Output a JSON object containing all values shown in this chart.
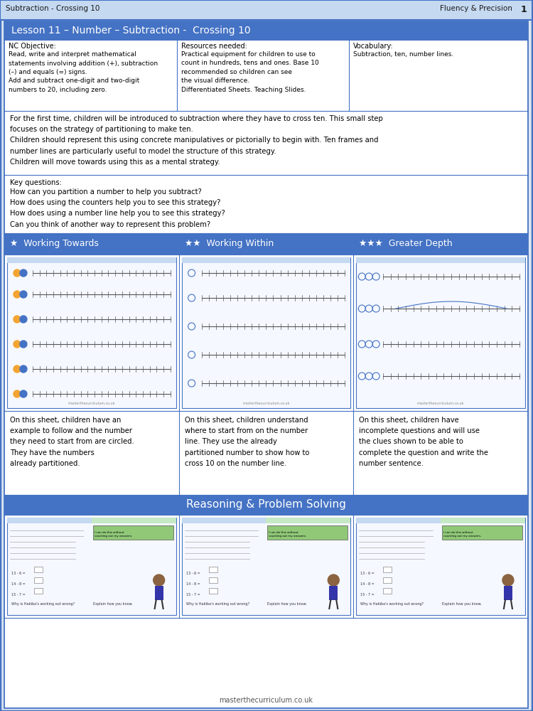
{
  "header_left": "Subtraction - Crossing 10",
  "header_right": "Fluency & Precision",
  "header_num": "1",
  "header_bg": "#c5d9f1",
  "border_color": "#4472c4",
  "lesson_title": "Lesson 11 – Number – Subtraction -  Crossing 10",
  "lesson_title_bg": "#4472c4",
  "lesson_title_color": "#ffffff",
  "nc_objective_title": "NC Objective:",
  "nc_objective_body": "Read, write and interpret mathematical\nstatements involving addition (+), subtraction\n(–) and equals (=) signs.\nAdd and subtract one-digit and two-digit\nnumbers to 20, including zero.",
  "resources_title": "Resources needed:",
  "resources_body": "Practical equipment for children to use to\ncount in hundreds, tens and ones. Base 10\nrecommended so children can see\nthe visual difference.\nDifferentiated Sheets. Teaching Slides.",
  "vocab_title": "Vocabulary:",
  "vocab_body": "Subtraction, ten, number lines.",
  "intro_text": "For the first time, children will be introduced to subtraction where they have to cross ten. This small step\nfocuses on the strategy of partitioning to make ten.\nChildren should represent this using concrete manipulatives or pictorially to begin with. Ten frames and\nnumber lines are particularly useful to model the structure of this strategy.\nChildren will move towards using this as a mental strategy.",
  "key_questions_title": "Key questions:",
  "key_questions": "How can you partition a number to help you subtract?\nHow does using the counters help you to see this strategy?\nHow does using a number line help you to see this strategy?\nCan you think of another way to represent this problem?",
  "col1_header": "★  Working Towards",
  "col2_header": "★★  Working Within",
  "col3_header": "★★★  Greater Depth",
  "col_header_bg": "#4472c4",
  "col_header_color": "#ffffff",
  "col1_desc": "On this sheet, children have an\nexample to follow and the number\nthey need to start from are circled.\nThey have the numbers\nalready partitioned.",
  "col2_desc": "On this sheet, children understand\nwhere to start from on the number\nline. They use the already\npartitioned number to show how to\ncross 10 on the number line.",
  "col3_desc": "On this sheet, children have\nincomplete questions and will use\nthe clues shown to be able to\ncomplete the question and write the\nnumber sentence.",
  "rps_title": "Reasoning & Problem Solving",
  "rps_bg": "#4472c4",
  "rps_color": "#ffffff",
  "footer_text": "masterthecurriculum.co.uk",
  "bg_color": "#dce6f1",
  "body_bg": "#ffffff",
  "thumb_bg": "#f8fafc",
  "thumb_inner_bg": "#ffffff",
  "thumb_border": "#4472c4"
}
